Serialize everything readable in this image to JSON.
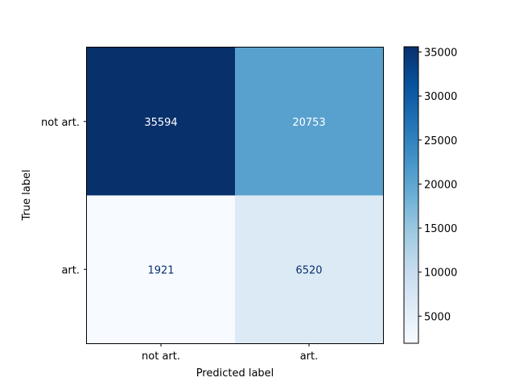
{
  "chart_data": {
    "type": "heatmap",
    "title": "",
    "xlabel": "Predicted label",
    "ylabel": "True label",
    "x_categories": [
      "not art.",
      "art."
    ],
    "y_categories": [
      "not art.",
      "art."
    ],
    "matrix": [
      [
        35594,
        20753
      ],
      [
        1921,
        6520
      ]
    ],
    "colormap": "Blues",
    "colorbar": {
      "min": 1921,
      "max": 35594,
      "ticks": [
        5000,
        10000,
        15000,
        20000,
        25000,
        30000,
        35000
      ]
    },
    "text_colors": {
      "light": "#ffffff",
      "dark": "#08306b"
    }
  }
}
